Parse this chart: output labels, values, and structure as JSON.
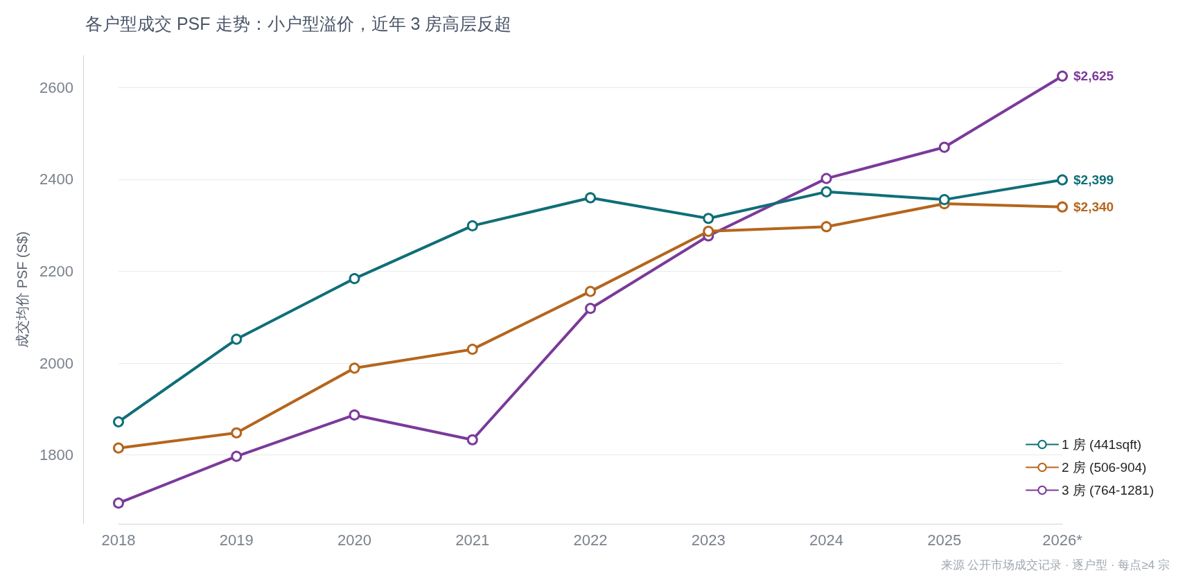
{
  "chart_data": {
    "type": "line",
    "title": "各户型成交 PSF 走势：小户型溢价，近年 3 房高层反超",
    "ylabel": "成交均价 PSF (S$)",
    "categories": [
      "2018",
      "2019",
      "2020",
      "2021",
      "2022",
      "2023",
      "2024",
      "2025",
      "2026*"
    ],
    "series": [
      {
        "name": "1 房 (441sqft)",
        "color": "#0f6e78",
        "values": [
          1872,
          2052,
          2184,
          2299,
          2360,
          2315,
          2373,
          2356,
          2399
        ],
        "value_labels": [
          null,
          null,
          null,
          null,
          null,
          null,
          null,
          null,
          "$2,399"
        ]
      },
      {
        "name": "2 房 (506-904)",
        "color": "#b5651d",
        "values": [
          1815,
          1848,
          1989,
          2030,
          2156,
          2287,
          2297,
          2347,
          2340
        ],
        "value_labels": [
          null,
          null,
          null,
          null,
          null,
          null,
          null,
          null,
          "$2,340"
        ]
      },
      {
        "name": "3 房 (764-1281)",
        "color": "#7b3a9a",
        "values": [
          1695,
          1797,
          1887,
          1833,
          2119,
          2277,
          2402,
          2470,
          2625
        ],
        "value_labels": [
          null,
          null,
          null,
          null,
          null,
          null,
          null,
          null,
          "$2,625"
        ]
      }
    ],
    "ylim": [
      1650,
      2670
    ],
    "yticks": [
      1800,
      2000,
      2200,
      2400,
      2600
    ],
    "grid": "y",
    "legend": "bottom right",
    "marker": "circle",
    "line_style": "solid",
    "annotations": [
      "来源 公开市场成交记录 · 逐户型 · 每点≥4 宗"
    ]
  }
}
